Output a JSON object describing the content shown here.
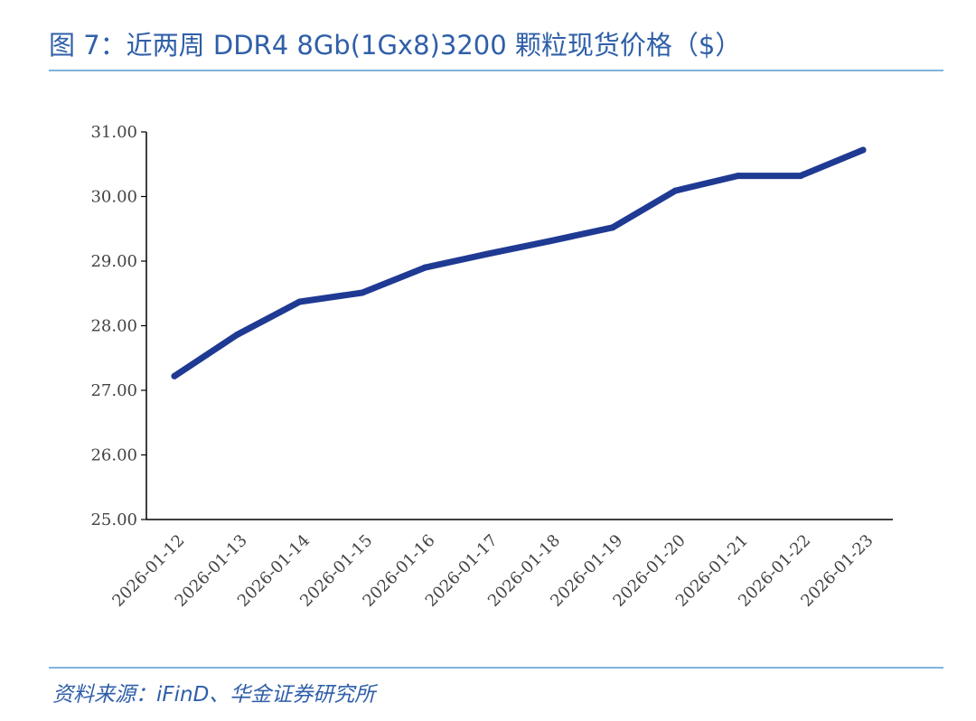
{
  "header": {
    "title": "图 7：近两周 DDR4 8Gb(1Gx8)3200 颗粒现货价格（$）"
  },
  "footer": {
    "source": "资料来源：iFinD、华金证券研究所"
  },
  "colors": {
    "line": "#1f3a93",
    "accent": "#2f5fa8",
    "rule": "#7fb3de"
  },
  "chart_data": {
    "type": "line",
    "title": "图 7：近两周 DDR4 8Gb(1Gx8)3200 颗粒现货价格（$）",
    "xlabel": "",
    "ylabel": "",
    "ylim": [
      25.0,
      31.0
    ],
    "yticks": [
      "25.00",
      "26.00",
      "27.00",
      "28.00",
      "29.00",
      "30.00",
      "31.00"
    ],
    "categories": [
      "2026-01-12",
      "2026-01-13",
      "2026-01-14",
      "2026-01-15",
      "2026-01-16",
      "2026-01-17",
      "2026-01-18",
      "2026-01-19",
      "2026-01-20",
      "2026-01-21",
      "2026-01-22",
      "2026-01-23"
    ],
    "values": [
      27.22,
      27.86,
      28.37,
      28.51,
      28.9,
      29.11,
      29.31,
      29.52,
      30.09,
      30.32,
      30.32,
      30.72
    ],
    "grid": false,
    "legend": "none"
  }
}
